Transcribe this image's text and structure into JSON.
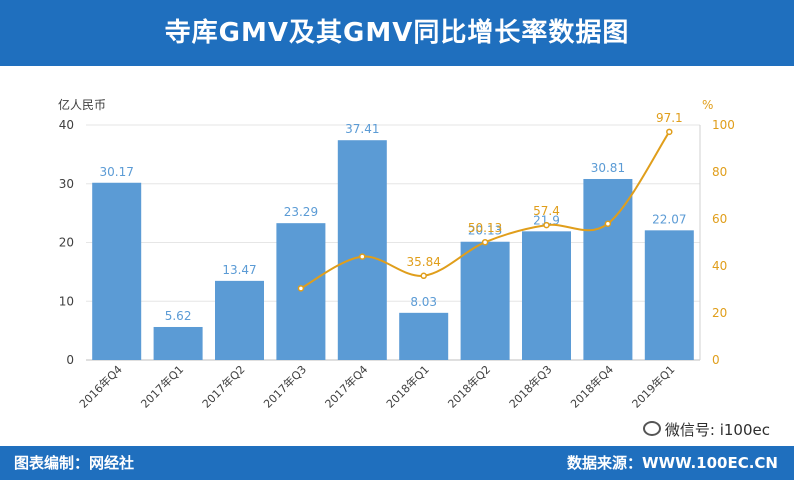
{
  "header": {
    "title": "寺库GMV及其GMV同比增长率数据图"
  },
  "footer": {
    "left_label": "图表编制：网经社",
    "right_label": "数据来源：WWW.100EC.CN",
    "wechat_label": "微信号: i100ec"
  },
  "colors": {
    "bar": "#5b9bd5",
    "line": "#e09e1b",
    "band": "#1f6fbe"
  },
  "chart_data": {
    "type": "bar",
    "categories": [
      "2016年Q4",
      "2017年Q1",
      "2017年Q2",
      "2017年Q3",
      "2017年Q4",
      "2018年Q1",
      "2018年Q2",
      "2018年Q3",
      "2018年Q4",
      "2019年Q1"
    ],
    "series": [
      {
        "values": [
          30.17,
          5.62,
          13.47,
          23.29,
          37.41,
          8.03,
          20.13,
          21.9,
          30.81,
          22.07
        ]
      },
      {
        "values": [
          null,
          null,
          null,
          30.5,
          44,
          35.84,
          50.13,
          57.4,
          58,
          97.1
        ]
      }
    ],
    "bar_value_labels": [
      "30.17",
      "5.62",
      "13.47",
      "23.29",
      "37.41",
      "8.03",
      "20.13",
      "21.9",
      "30.81",
      "22.07"
    ],
    "line_value_labels": [
      "",
      "",
      "",
      "",
      "",
      "35.84",
      "50.13",
      "57.4",
      "",
      "97.1"
    ],
    "left_axis": {
      "unit": "亿人民币",
      "ylim": [
        0,
        40
      ],
      "ticks": [
        "0",
        "10",
        "20",
        "30",
        "40"
      ]
    },
    "right_axis": {
      "unit": "%",
      "ylim": [
        0,
        100
      ],
      "ticks": [
        "0",
        "20",
        "40",
        "60",
        "80",
        "100"
      ]
    },
    "grid": true,
    "line_style": "smoothed"
  }
}
